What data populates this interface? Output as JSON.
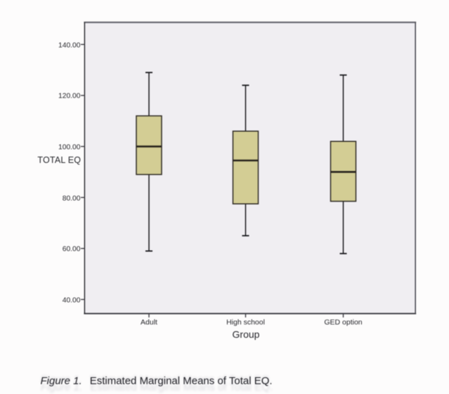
{
  "figure": {
    "caption_label": "Figure 1.",
    "caption_text": "Estimated Marginal Means of Total EQ."
  },
  "chart_data": {
    "type": "boxplot",
    "title": "",
    "xlabel": "Group",
    "ylabel": "TOTAL EQ",
    "categories": [
      "Adult",
      "High school",
      "GED option"
    ],
    "y_ticks": [
      {
        "value": 40,
        "label": "40.00"
      },
      {
        "value": 60,
        "label": "60.00"
      },
      {
        "value": 80,
        "label": "80.00"
      },
      {
        "value": 100,
        "label": "100.00"
      },
      {
        "value": 120,
        "label": "120.00"
      },
      {
        "value": 140,
        "label": "140.00"
      }
    ],
    "ylim": [
      33,
      148.5
    ],
    "grid": false,
    "legend": "none",
    "series": [
      {
        "name": "Total EQ",
        "boxes": [
          {
            "category": "Adult",
            "min": 59,
            "q1": 89,
            "median": 100,
            "q3": 112,
            "max": 129
          },
          {
            "category": "High school",
            "min": 65,
            "q1": 77.5,
            "median": 94.5,
            "q3": 106,
            "max": 124
          },
          {
            "category": "GED option",
            "min": 58,
            "q1": 78.5,
            "median": 90,
            "q3": 102,
            "max": 128
          }
        ]
      }
    ],
    "colors": {
      "plot_background": "#f0eef2",
      "box_fill": "#d3cd94",
      "box_border": "#2e2a24",
      "median_line": "#26211b",
      "whisker_line": "#18181c",
      "frame_border": "#4a4a52",
      "text": "#26262b"
    }
  }
}
